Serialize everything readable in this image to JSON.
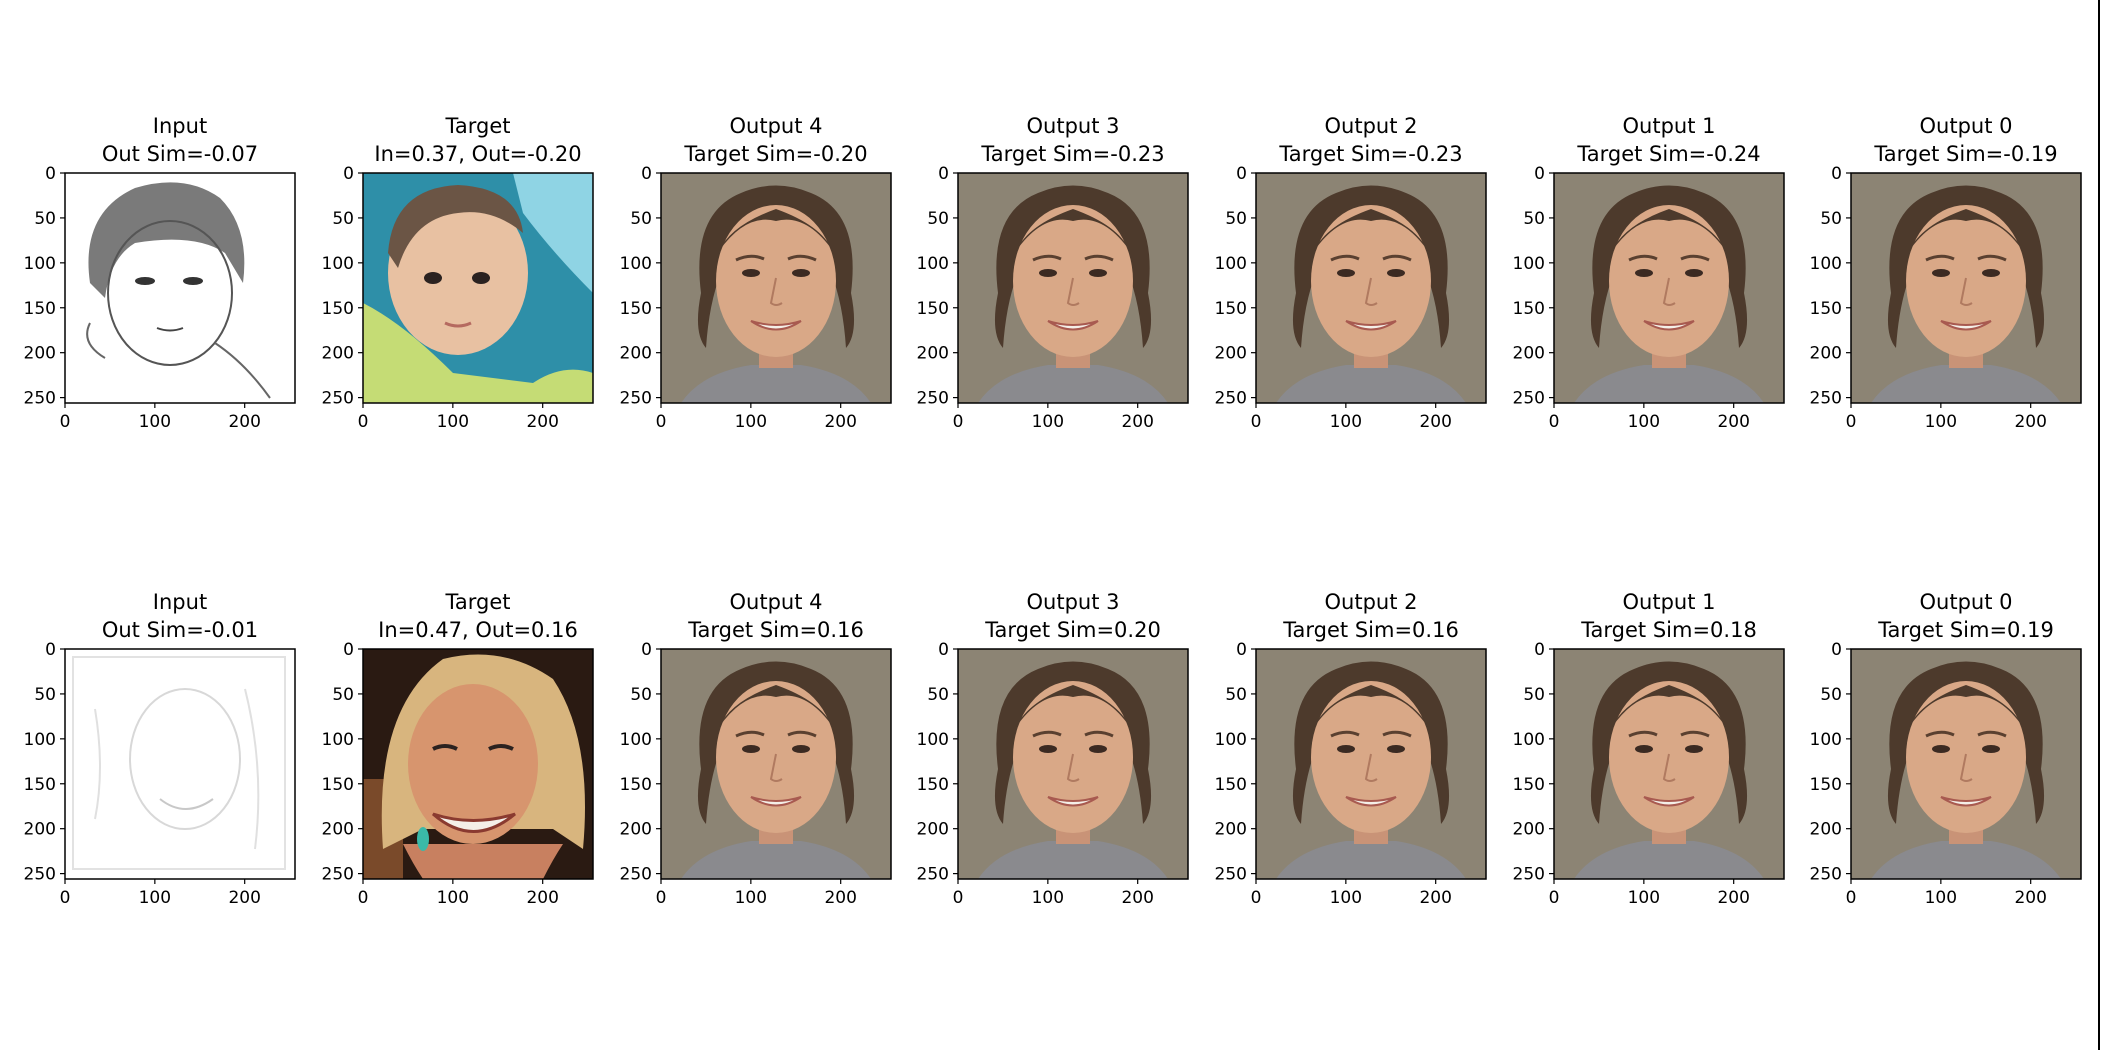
{
  "figure": {
    "rows": [
      {
        "panels": [
          {
            "kind": "sketch-child",
            "title": "Input",
            "subtitle": "Out Sim=-0.07"
          },
          {
            "kind": "baby-photo",
            "title": "Target",
            "subtitle": "In=0.37, Out=-0.20"
          },
          {
            "kind": "generated-face",
            "title": "Output 4",
            "subtitle": "Target Sim=-0.20"
          },
          {
            "kind": "generated-face",
            "title": "Output 3",
            "subtitle": "Target Sim=-0.23"
          },
          {
            "kind": "generated-face",
            "title": "Output 2",
            "subtitle": "Target Sim=-0.23"
          },
          {
            "kind": "generated-face",
            "title": "Output 1",
            "subtitle": "Target Sim=-0.24"
          },
          {
            "kind": "generated-face",
            "title": "Output 0",
            "subtitle": "Target Sim=-0.19"
          }
        ]
      },
      {
        "panels": [
          {
            "kind": "sketch-woman",
            "title": "Input",
            "subtitle": "Out Sim=-0.01"
          },
          {
            "kind": "woman-photo",
            "title": "Target",
            "subtitle": "In=0.47, Out=0.16"
          },
          {
            "kind": "generated-face",
            "title": "Output 4",
            "subtitle": "Target Sim=0.16"
          },
          {
            "kind": "generated-face",
            "title": "Output 3",
            "subtitle": "Target Sim=0.20"
          },
          {
            "kind": "generated-face",
            "title": "Output 2",
            "subtitle": "Target Sim=0.16"
          },
          {
            "kind": "generated-face",
            "title": "Output 1",
            "subtitle": "Target Sim=0.18"
          },
          {
            "kind": "generated-face",
            "title": "Output 0",
            "subtitle": "Target Sim=0.19"
          }
        ]
      }
    ]
  },
  "chart_data": {
    "type": "image-grid",
    "rows": 2,
    "cols": 7,
    "image_size": [
      256,
      256
    ],
    "x_ticks": [
      0,
      100,
      200
    ],
    "y_ticks": [
      0,
      50,
      100,
      150,
      200,
      250
    ],
    "xlim": [
      0,
      256
    ],
    "ylim": [
      256,
      0
    ],
    "similarity": {
      "row_1": {
        "input_out_sim": -0.07,
        "target_in": 0.37,
        "target_out": -0.2,
        "outputs": {
          "4": -0.2,
          "3": -0.23,
          "2": -0.23,
          "1": -0.24,
          "0": -0.19
        }
      },
      "row_2": {
        "input_out_sim": -0.01,
        "target_in": 0.47,
        "target_out": 0.16,
        "outputs": {
          "4": 0.16,
          "3": 0.2,
          "2": 0.16,
          "1": 0.18,
          "0": 0.19
        }
      }
    }
  },
  "colors": {
    "axis": "#000000",
    "background": "#ffffff",
    "generated_bg": "#8c8474",
    "skin": "#d9a887",
    "hair": "#4d3a2c",
    "baby_bg": "#2e8fa8",
    "woman_bg": "#2a1a12",
    "woman_hair": "#d8b57e"
  }
}
